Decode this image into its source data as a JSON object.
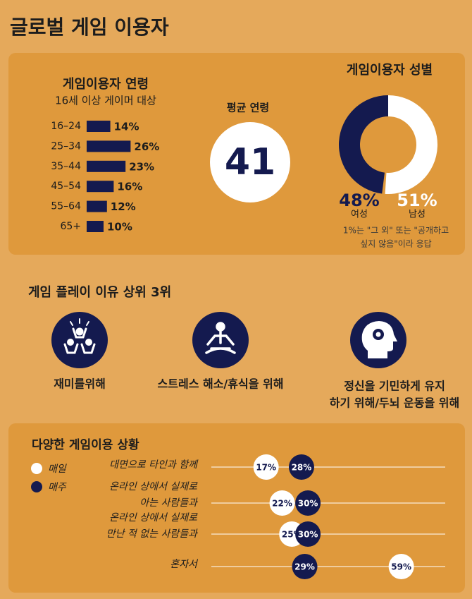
{
  "title": "글로벌 게임 이용자",
  "age": {
    "title": "게임이용자 연령",
    "subtitle": "16세 이상 게이머 대상",
    "categories": [
      "16–24",
      "25–34",
      "35–44",
      "45–54",
      "55–64",
      "65+"
    ],
    "values": [
      14,
      26,
      23,
      16,
      12,
      10
    ],
    "value_labels": [
      "14%",
      "26%",
      "23%",
      "16%",
      "12%",
      "10%"
    ],
    "color": "#141a4f"
  },
  "average": {
    "title": "평균 연령",
    "value": 41
  },
  "gender": {
    "title": "게임이용자 성별",
    "series": [
      {
        "name": "여성",
        "value": 48,
        "value_label": "48%",
        "color": "#141a4f"
      },
      {
        "name": "남성",
        "value": 51,
        "value_label": "51%",
        "color": "#ffffff"
      }
    ],
    "note": [
      "1%는 \"그 외\" 또는 \"공개하고",
      "싶지 않음\"이라 응답"
    ]
  },
  "reasons": {
    "title": "게임 플레이 이유 상위 3위",
    "items": [
      [
        "재미를위해"
      ],
      [
        "스트레스 해소/휴식을 위해"
      ],
      [
        "정신을 기민하게 유지",
        "하기 위해/두뇌 운동을 위해"
      ]
    ]
  },
  "situations": {
    "title": "다양한 게임이용 상황",
    "categories": [
      [
        "대면으로 타인과 함께"
      ],
      [
        "온라인 상에서 실제로",
        "아는 사람들과"
      ],
      [
        "온라인 상에서 실제로",
        "만난 적 없는 사람들과"
      ],
      [
        "혼자서"
      ]
    ],
    "series": [
      {
        "name": "매일",
        "color": "#ffffff",
        "values": [
          17,
          22,
          25,
          59
        ],
        "value_labels": [
          "17%",
          "22%",
          "25%",
          "59%"
        ]
      },
      {
        "name": "매주",
        "color": "#141a4f",
        "values": [
          28,
          30,
          30,
          29
        ],
        "value_labels": [
          "28%",
          "30%",
          "30%",
          "29%"
        ]
      }
    ]
  }
}
